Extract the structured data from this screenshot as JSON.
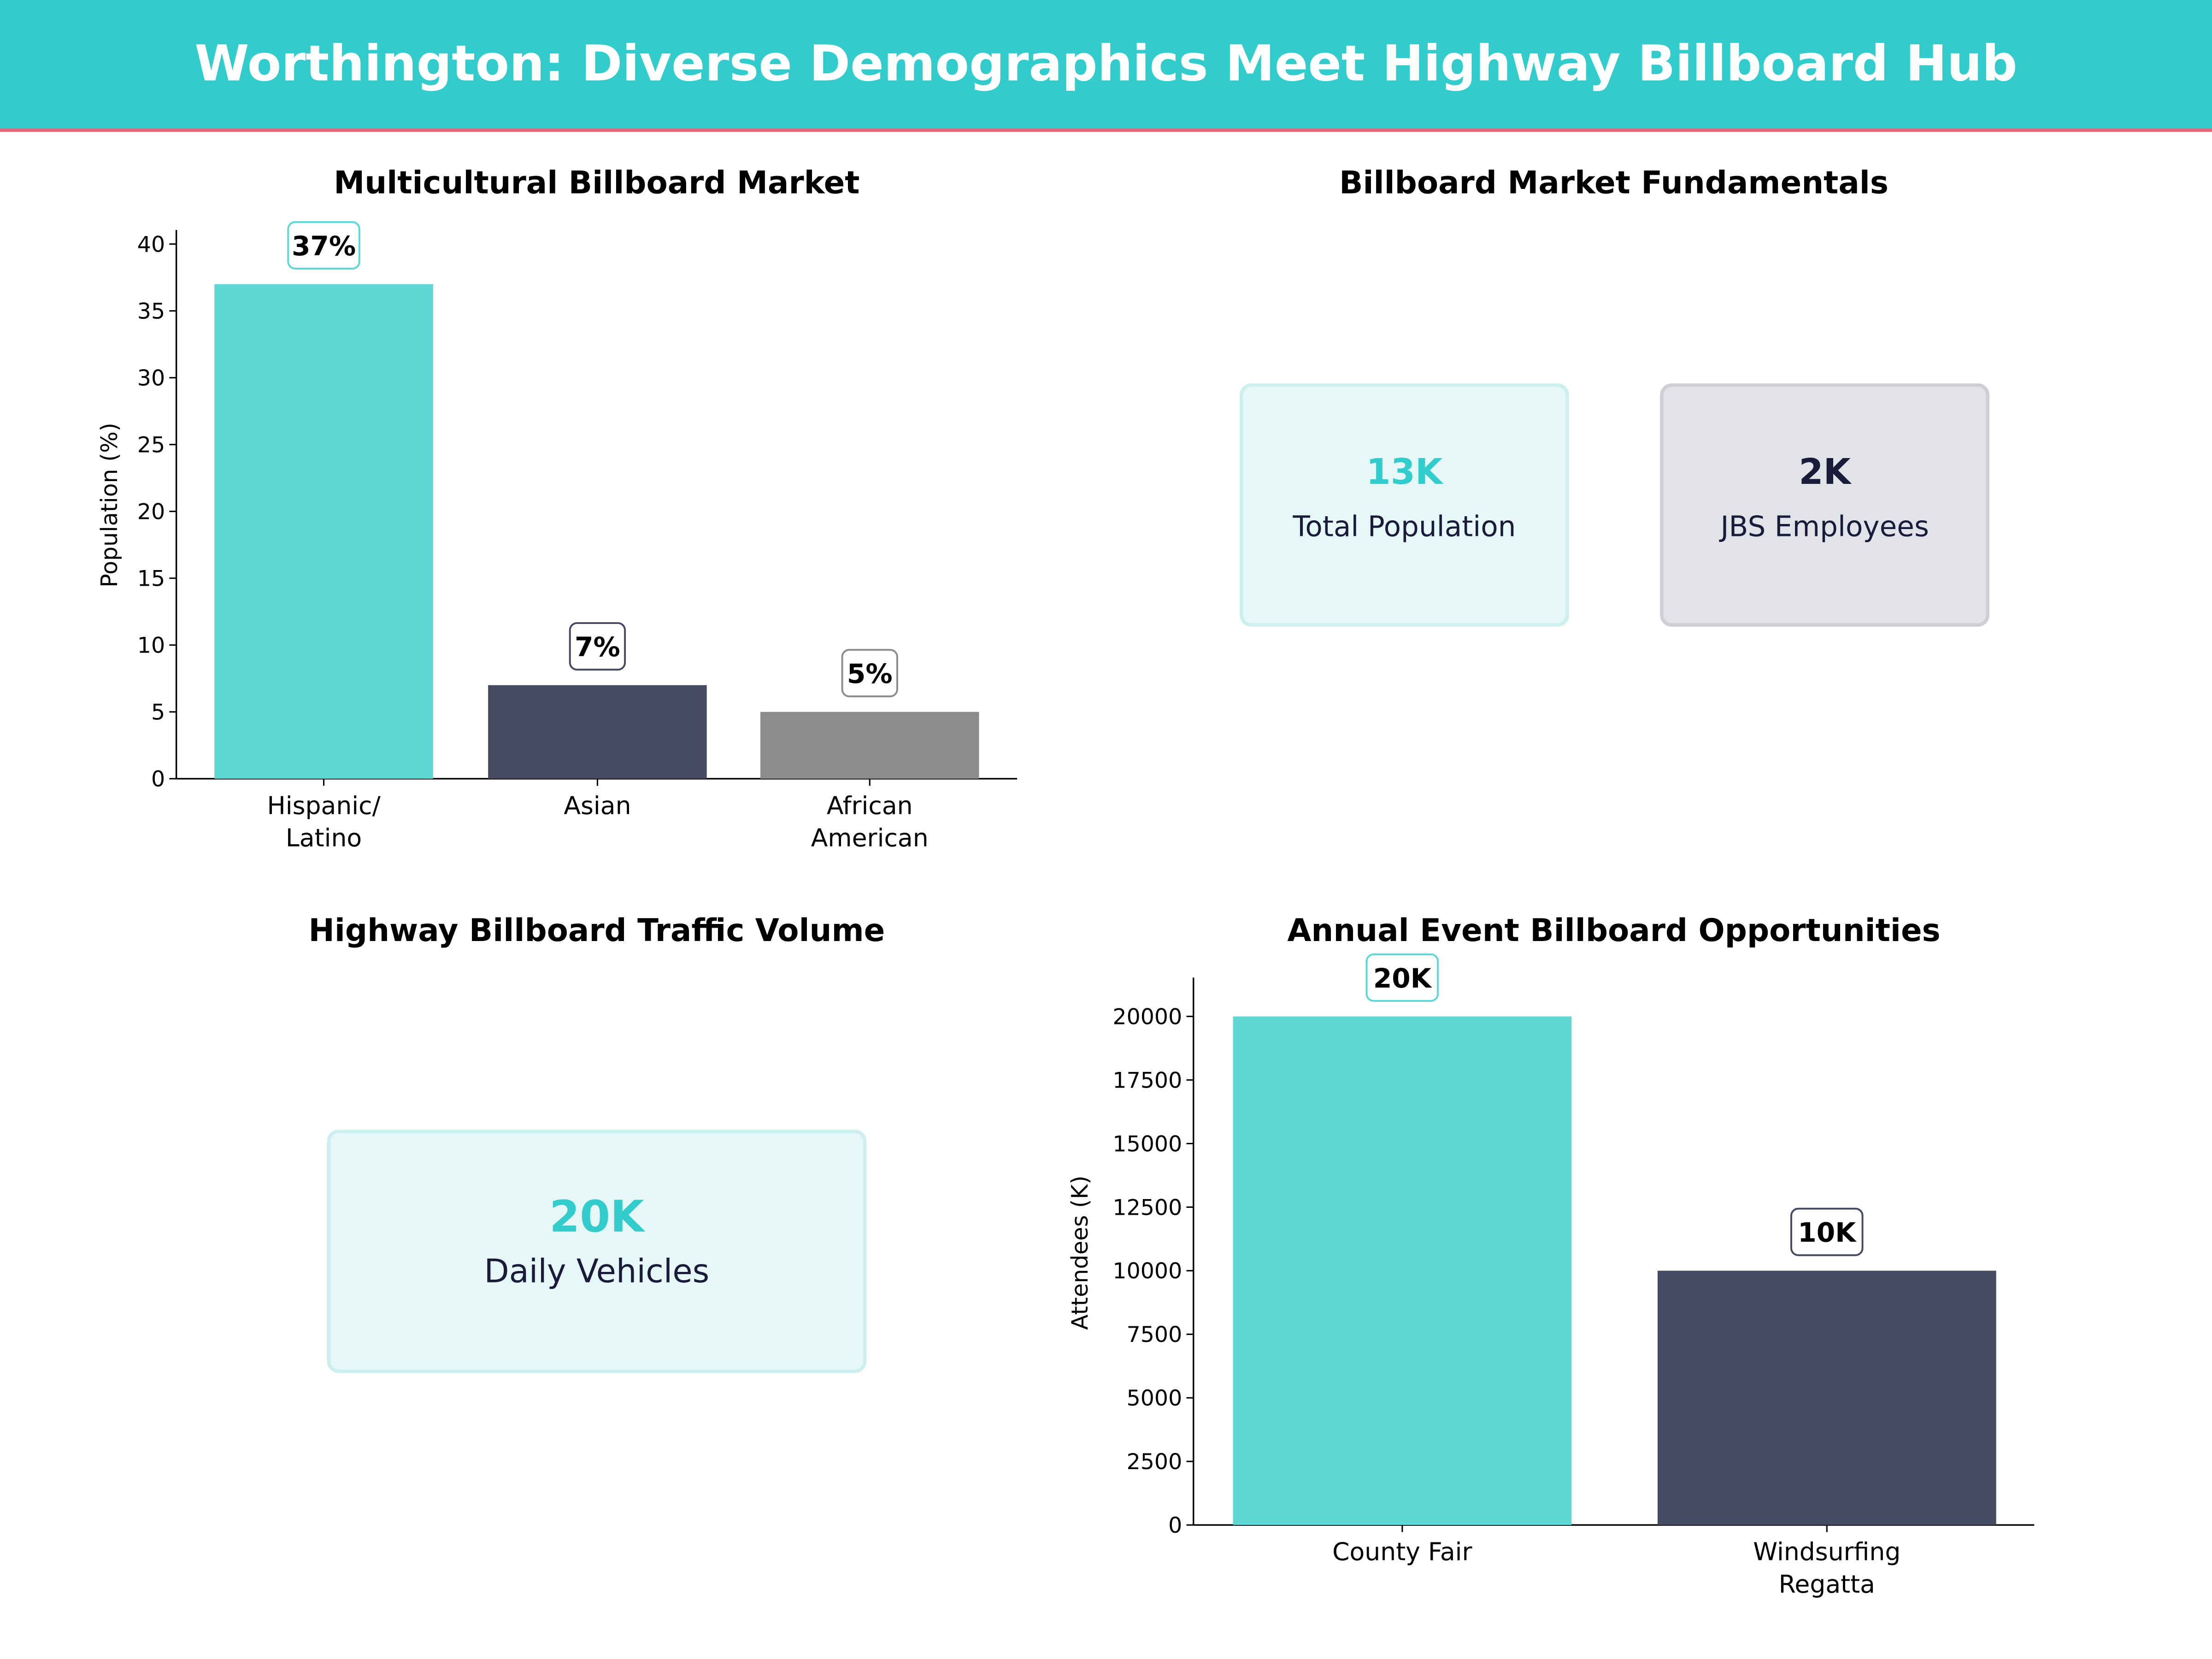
{
  "header": {
    "title": "Worthington: Diverse Demographics Meet Highway Billboard Hub"
  },
  "colors": {
    "header_bg": "#33CCCC",
    "header_line": "#E8677A",
    "teal": "#5DD8D4",
    "navy": "#454A60",
    "gray": "#8C8C8C",
    "kpi_teal_text": "#33CCCC",
    "kpi_dark_text": "#1A1A3A"
  },
  "chart_data": [
    {
      "type": "bar",
      "title": "Multicultural Billboard Market",
      "xlabel": "",
      "ylabel": "Population (%)",
      "categories": [
        [
          "Hispanic/",
          "Latino"
        ],
        [
          "Asian"
        ],
        [
          "African",
          "American"
        ]
      ],
      "values": [
        37,
        7,
        5
      ],
      "data_labels": [
        "37%",
        "7%",
        "5%"
      ],
      "bar_colors": [
        "#5DD8D4",
        "#454A60",
        "#8C8C8C"
      ],
      "yticks": [
        0,
        5,
        10,
        15,
        20,
        25,
        30,
        35,
        40
      ],
      "ylim": [
        0,
        41
      ],
      "grid": false
    },
    {
      "type": "table",
      "title": "Billboard Market Fundamentals",
      "kpis": [
        {
          "value": "13K",
          "label": "Total Population"
        },
        {
          "value": "2K",
          "label": "JBS Employees"
        }
      ]
    },
    {
      "type": "table",
      "title": "Highway Billboard Traffic Volume",
      "kpis": [
        {
          "value": "20K",
          "label": "Daily Vehicles"
        }
      ]
    },
    {
      "type": "bar",
      "title": "Annual Event Billboard Opportunities",
      "xlabel": "",
      "ylabel": "Attendees (K)",
      "categories": [
        [
          "County Fair"
        ],
        [
          "Windsurfing",
          "Regatta"
        ]
      ],
      "values": [
        20000,
        10000
      ],
      "data_labels": [
        "20K",
        "10K"
      ],
      "bar_colors": [
        "#5DD8D4",
        "#454A60"
      ],
      "yticks": [
        0,
        2500,
        5000,
        7500,
        10000,
        12500,
        15000,
        17500,
        20000
      ],
      "ylim": [
        0,
        21500
      ],
      "grid": false
    }
  ]
}
